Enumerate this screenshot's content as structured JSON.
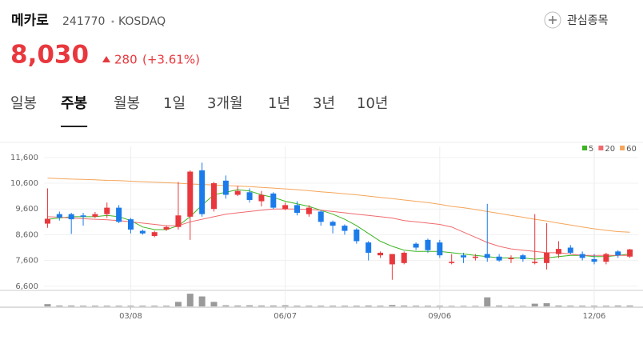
{
  "header": {
    "name": "메카로",
    "code": "241770",
    "market": "KOSDAQ",
    "price": "8,030",
    "change": "280",
    "change_rate": "(+3.61%)",
    "watch_button": "관심종목"
  },
  "tabs": [
    "일봉",
    "주봉",
    "월봉",
    "1일",
    "3개월",
    "1년",
    "3년",
    "10년"
  ],
  "selected_tab": 1,
  "chart_data": {
    "type": "candlestick",
    "categories": [
      null,
      null,
      null,
      null,
      null,
      null,
      null,
      "03/08",
      null,
      null,
      null,
      null,
      null,
      null,
      null,
      null,
      null,
      null,
      null,
      null,
      "06/07",
      null,
      null,
      null,
      null,
      null,
      null,
      null,
      null,
      null,
      null,
      null,
      null,
      "09/06",
      null,
      null,
      null,
      null,
      null,
      null,
      null,
      null,
      null,
      null,
      null,
      null,
      "12/06",
      null,
      null,
      null
    ],
    "open": [
      9030,
      9400,
      9400,
      9350,
      9300,
      9400,
      9650,
      9200,
      8750,
      8550,
      8800,
      8900,
      9300,
      11100,
      9600,
      10700,
      10150,
      10250,
      9900,
      10200,
      9600,
      9750,
      9400,
      9500,
      9100,
      8950,
      8800,
      8300,
      7800,
      7450,
      7500,
      8250,
      8400,
      8300,
      7500,
      7800,
      7700,
      7850,
      7750,
      7650,
      7800,
      7500,
      7500,
      7850,
      8100,
      7850,
      7650,
      7550,
      7950,
      7750
    ],
    "high": [
      10400,
      9500,
      9450,
      9450,
      9480,
      9850,
      9750,
      9250,
      8800,
      8750,
      8950,
      10650,
      11100,
      11400,
      10650,
      10900,
      10500,
      10400,
      10300,
      10250,
      9850,
      9900,
      9750,
      9550,
      9150,
      9000,
      8850,
      8350,
      7950,
      7850,
      7950,
      8300,
      8450,
      8400,
      7850,
      7900,
      7850,
      9800,
      7850,
      7800,
      7850,
      9400,
      9050,
      8350,
      8200,
      7950,
      7850,
      7900,
      8000,
      8050
    ],
    "low": [
      8870,
      9150,
      8630,
      8950,
      9250,
      9250,
      9050,
      8650,
      8600,
      8500,
      8750,
      8800,
      8400,
      9300,
      9500,
      10000,
      10100,
      9850,
      9700,
      9600,
      9550,
      9350,
      9300,
      8950,
      8650,
      8600,
      8250,
      7600,
      7700,
      6850,
      7450,
      8000,
      7900,
      7700,
      7450,
      7500,
      7600,
      7550,
      7550,
      7500,
      7550,
      7450,
      7250,
      7700,
      7850,
      7600,
      7450,
      7450,
      7700,
      7700
    ],
    "close": [
      9220,
      9270,
      9200,
      9300,
      9400,
      9650,
      9100,
      8800,
      8650,
      8700,
      8900,
      9350,
      11050,
      9400,
      10600,
      10150,
      10300,
      9950,
      10150,
      9650,
      9750,
      9450,
      9650,
      9100,
      8950,
      8750,
      8350,
      7900,
      7900,
      7850,
      7900,
      8100,
      8000,
      7800,
      7550,
      7720,
      7750,
      7700,
      7600,
      7700,
      7650,
      7550,
      7900,
      8050,
      7900,
      7700,
      7550,
      7850,
      7800,
      8030
    ],
    "up_color": "#e8383d",
    "down_color": "#1b7bea",
    "series": [
      {
        "name": "5",
        "color": "#3cb521",
        "values": [
          9200,
          9250,
          9300,
          9300,
          9300,
          9350,
          9300,
          9150,
          8900,
          8800,
          8800,
          8950,
          9300,
          9750,
          10150,
          10250,
          10350,
          10300,
          10150,
          10050,
          9900,
          9800,
          9700,
          9550,
          9400,
          9200,
          8950,
          8650,
          8350,
          8150,
          8000,
          7950,
          7950,
          7950,
          7900,
          7850,
          7800,
          7750,
          7700,
          7700,
          7700,
          7650,
          7700,
          7750,
          7800,
          7800,
          7750,
          7750,
          7800,
          7850
        ]
      },
      {
        "name": "20",
        "color": "#ef6a6e",
        "values": [
          9300,
          9280,
          9250,
          9220,
          9200,
          9180,
          9150,
          9100,
          9050,
          9000,
          8950,
          8950,
          9100,
          9200,
          9300,
          9400,
          9450,
          9500,
          9550,
          9600,
          9600,
          9600,
          9580,
          9550,
          9500,
          9450,
          9400,
          9350,
          9300,
          9250,
          9150,
          9100,
          9050,
          9000,
          8900,
          8700,
          8500,
          8300,
          8150,
          8050,
          8000,
          7950,
          7900,
          7900,
          7850,
          7800,
          7800,
          7800,
          7800,
          7800
        ]
      },
      {
        "name": "60",
        "color": "#f5a55a",
        "values": [
          10800,
          10780,
          10760,
          10750,
          10730,
          10710,
          10700,
          10680,
          10660,
          10640,
          10620,
          10600,
          10570,
          10550,
          10530,
          10510,
          10490,
          10470,
          10440,
          10410,
          10380,
          10350,
          10310,
          10270,
          10230,
          10190,
          10150,
          10100,
          10050,
          10000,
          9950,
          9900,
          9850,
          9780,
          9700,
          9650,
          9580,
          9500,
          9430,
          9350,
          9280,
          9200,
          9130,
          9050,
          8980,
          8900,
          8830,
          8770,
          8720,
          8700
        ]
      }
    ],
    "ylim": [
      6500,
      12030
    ],
    "yticks": [
      {
        "value": 11600,
        "label": "11,600"
      },
      {
        "value": 10600,
        "label": "10,600"
      },
      {
        "value": 9600,
        "label": "9,600"
      },
      {
        "value": 8600,
        "label": "8,600"
      },
      {
        "value": 7600,
        "label": "7,600"
      },
      {
        "value": 6600,
        "label": "6,600"
      }
    ],
    "volume": [
      2.5,
      1,
      1,
      0.8,
      0.8,
      0.8,
      0.8,
      0.8,
      0.8,
      0.8,
      0.8,
      5,
      14,
      11,
      5,
      1.2,
      1,
      1.2,
      1,
      1,
      1.2,
      0.8,
      0.8,
      0.8,
      0.8,
      0.8,
      0.8,
      1,
      0.8,
      1.5,
      1,
      0.8,
      0.8,
      0.8,
      0.6,
      0.6,
      0.6,
      10,
      1,
      0.6,
      0.6,
      3,
      3.5,
      1,
      0.8,
      0.8,
      0.8,
      0.8,
      1,
      1
    ],
    "volume_ylim": [
      0,
      15
    ],
    "volume_color": "#9a9a9a",
    "grid": true
  }
}
